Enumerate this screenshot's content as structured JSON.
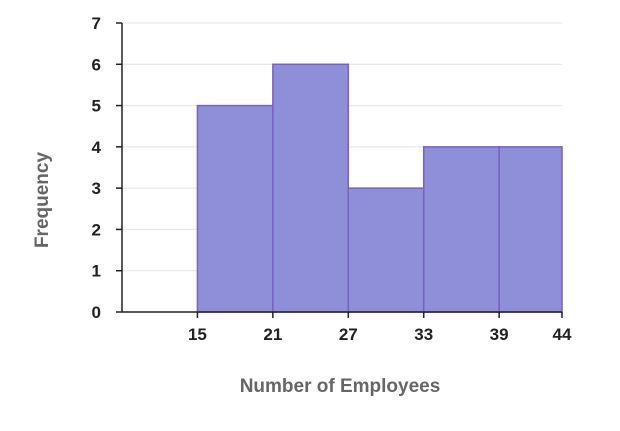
{
  "chart_data": {
    "type": "bar",
    "title": "",
    "xlabel": "Number of Employees",
    "ylabel": "Frequency",
    "bins": [
      {
        "from": 15,
        "to": 21,
        "value": 5
      },
      {
        "from": 21,
        "to": 27,
        "value": 6
      },
      {
        "from": 27,
        "to": 33,
        "value": 3
      },
      {
        "from": 33,
        "to": 39,
        "value": 4
      },
      {
        "from": 39,
        "to": 44,
        "value": 4
      }
    ],
    "x_ticks": [
      "15",
      "21",
      "27",
      "33",
      "39",
      "44"
    ],
    "y_ticks": [
      "0",
      "1",
      "2",
      "3",
      "4",
      "5",
      "6",
      "7"
    ],
    "ylim": [
      0,
      7
    ],
    "xlim": [
      9,
      44
    ],
    "grid": "horizontal",
    "legend": "none",
    "colors": {
      "bar_fill": "#8f8fd9",
      "bar_stroke": "#7a5fc4",
      "axis": "#222222",
      "grid": "#e4e4e4"
    }
  }
}
